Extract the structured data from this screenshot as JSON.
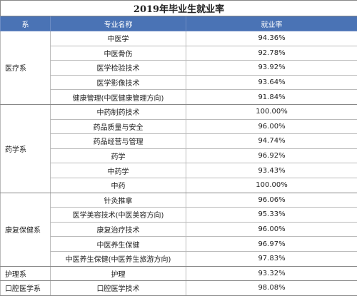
{
  "table": {
    "title": "2019年毕业生就业率",
    "header": [
      "系",
      "专业名称",
      "就业率"
    ],
    "groups": [
      {
        "name": "医疗系",
        "rows": [
          [
            "中医学",
            "94.36%"
          ],
          [
            "中医骨伤",
            "92.78%"
          ],
          [
            "医学检验技术",
            "93.92%"
          ],
          [
            "医学影像技术",
            "93.64%"
          ],
          [
            "健康管理(中医健康管理方向)",
            "91.84%"
          ]
        ]
      },
      {
        "name": "药学系",
        "rows": [
          [
            "中药制药技术",
            "100.00%"
          ],
          [
            "药品质量与安全",
            "96.00%"
          ],
          [
            "药品经营与管理",
            "94.74%"
          ],
          [
            "药学",
            "96.92%"
          ],
          [
            "中药学",
            "93.43%"
          ],
          [
            "中药",
            "100.00%"
          ]
        ]
      },
      {
        "name": "康复保健系",
        "rows": [
          [
            "针灸推拿",
            "96.06%"
          ],
          [
            "医学美容技术(中医美容方向)",
            "95.33%"
          ],
          [
            "康复治疗技术",
            "96.00%"
          ],
          [
            "中医养生保健",
            "96.97%"
          ],
          [
            "中医养生保健(中医养生旅游方向)",
            "97.83%"
          ]
        ]
      },
      {
        "name": "护理系",
        "rows": [
          [
            "护理",
            "93.32%"
          ]
        ]
      },
      {
        "name": "口腔医学系",
        "rows": [
          [
            "口腔医学技术",
            "98.08%"
          ]
        ]
      }
    ]
  }
}
